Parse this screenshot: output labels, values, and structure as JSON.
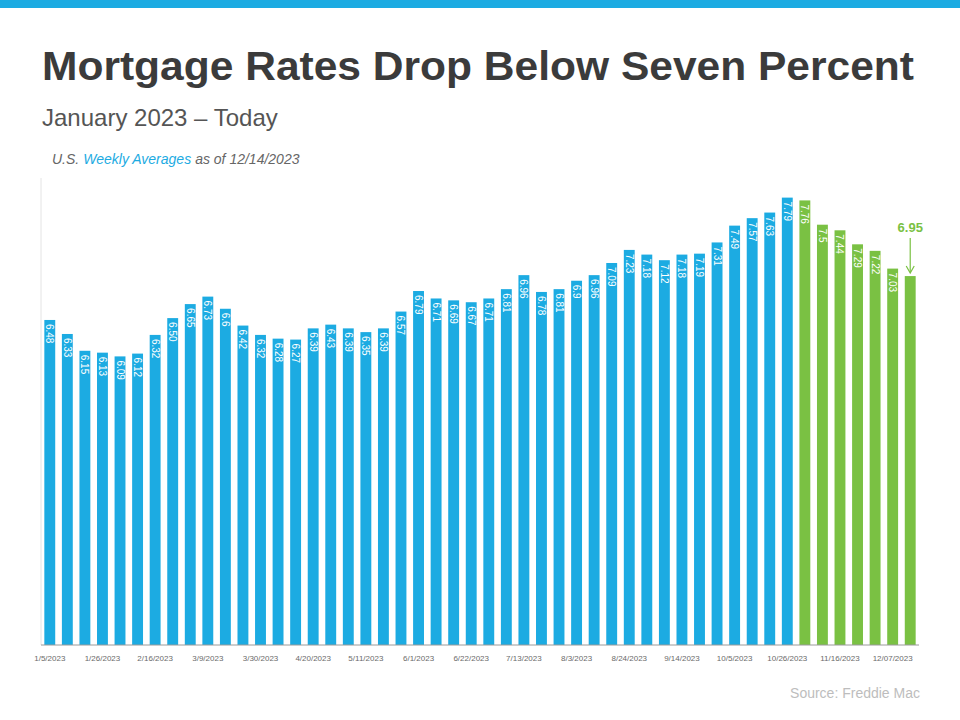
{
  "chart_data": {
    "type": "bar",
    "title": "Mortgage Rates Drop Below Seven Percent",
    "subtitle": "January 2023 – Today",
    "note": [
      "U.S.",
      "Weekly Averages",
      "as of 12/14/2023"
    ],
    "source": "Source: Freddie Mac",
    "categories": [
      "1/5/2023",
      null,
      null,
      "1/26/2023",
      null,
      null,
      "2/16/2023",
      null,
      null,
      "3/9/2023",
      null,
      null,
      "3/30/2023",
      null,
      null,
      "4/20/2023",
      null,
      null,
      "5/11/2023",
      null,
      null,
      "6/1/2023",
      null,
      null,
      "6/22/2023",
      null,
      null,
      "7/13/2023",
      null,
      null,
      "8/3/2023",
      null,
      null,
      "8/24/2023",
      null,
      null,
      "9/14/2023",
      null,
      null,
      "10/5/2023",
      null,
      null,
      "10/26/2023",
      null,
      null,
      "11/16/2023",
      null,
      null,
      "12/07/2023",
      null
    ],
    "values": [
      6.48,
      6.33,
      6.15,
      6.13,
      6.09,
      6.12,
      6.32,
      6.5,
      6.65,
      6.73,
      6.6,
      6.42,
      6.32,
      6.28,
      6.27,
      6.39,
      6.43,
      6.39,
      6.35,
      6.39,
      6.57,
      6.79,
      6.71,
      6.69,
      6.67,
      6.71,
      6.81,
      6.96,
      6.78,
      6.81,
      6.9,
      6.96,
      7.09,
      7.23,
      7.18,
      7.12,
      7.18,
      7.19,
      7.31,
      7.49,
      7.57,
      7.63,
      7.79,
      7.76,
      7.5,
      7.44,
      7.29,
      7.22,
      7.03,
      6.95
    ],
    "value_labels": [
      "6.48",
      "6.33",
      "6.15",
      "6.13",
      "6.09",
      "6.12",
      "6.32",
      "6.50",
      "6.65",
      "6.73",
      "6.6",
      "6.42",
      "6.32",
      "6.28",
      "6.27",
      "6.39",
      "6.43",
      "6.39",
      "6.35",
      "6.39",
      "6.57",
      "6.79",
      "6.71",
      "6.69",
      "6.67",
      "6.71",
      "6.81",
      "6.96",
      "6.78",
      "6.81",
      "6.9",
      "6.96",
      "7.09",
      "7.23",
      "7.18",
      "7.12",
      "7.18",
      "7.19",
      "7.31",
      "7.49",
      "7.57",
      "7.63",
      "7.79",
      "7.76",
      "7.5",
      "7.44",
      "7.29",
      "7.22",
      "7.03",
      "6.95"
    ],
    "colors": [
      "#1cabe2",
      "#1cabe2",
      "#1cabe2",
      "#1cabe2",
      "#1cabe2",
      "#1cabe2",
      "#1cabe2",
      "#1cabe2",
      "#1cabe2",
      "#1cabe2",
      "#1cabe2",
      "#1cabe2",
      "#1cabe2",
      "#1cabe2",
      "#1cabe2",
      "#1cabe2",
      "#1cabe2",
      "#1cabe2",
      "#1cabe2",
      "#1cabe2",
      "#1cabe2",
      "#1cabe2",
      "#1cabe2",
      "#1cabe2",
      "#1cabe2",
      "#1cabe2",
      "#1cabe2",
      "#1cabe2",
      "#1cabe2",
      "#1cabe2",
      "#1cabe2",
      "#1cabe2",
      "#1cabe2",
      "#1cabe2",
      "#1cabe2",
      "#1cabe2",
      "#1cabe2",
      "#1cabe2",
      "#1cabe2",
      "#1cabe2",
      "#1cabe2",
      "#1cabe2",
      "#1cabe2",
      "#7ac143",
      "#7ac143",
      "#7ac143",
      "#7ac143",
      "#7ac143",
      "#7ac143",
      "#7ac143"
    ],
    "ylim": [
      3,
      8
    ],
    "data_labels": true,
    "tick_labels": "x",
    "grid": false
  }
}
